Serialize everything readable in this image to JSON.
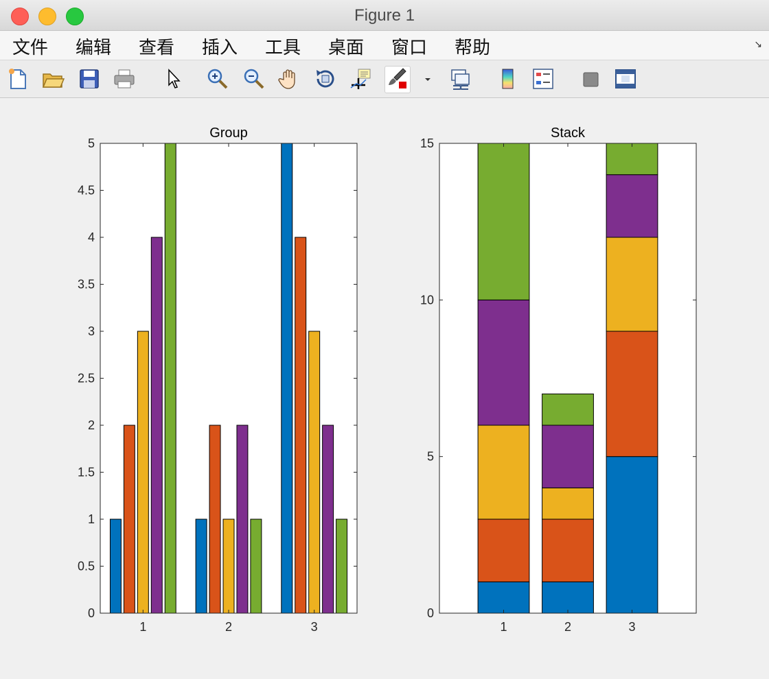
{
  "window": {
    "title": "Figure 1"
  },
  "menu": [
    "文件",
    "编辑",
    "查看",
    "插入",
    "工具",
    "桌面",
    "窗口",
    "帮助"
  ],
  "toolbar": [
    {
      "name": "new-figure-icon"
    },
    {
      "name": "open-file-icon"
    },
    {
      "name": "save-icon"
    },
    {
      "name": "print-icon"
    },
    {
      "name": "edit-plot-arrow-icon"
    },
    {
      "name": "zoom-in-icon"
    },
    {
      "name": "zoom-out-icon"
    },
    {
      "name": "pan-hand-icon"
    },
    {
      "name": "rotate-3d-icon"
    },
    {
      "name": "data-cursor-icon"
    },
    {
      "name": "brush-icon"
    },
    {
      "name": "brush-dropdown-icon"
    },
    {
      "name": "link-plot-icon"
    },
    {
      "name": "colorbar-icon"
    },
    {
      "name": "legend-icon"
    },
    {
      "name": "hide-plot-tools-icon"
    },
    {
      "name": "show-plot-tools-icon"
    }
  ],
  "chart_data": [
    {
      "type": "bar",
      "layout": "grouped",
      "title": "Group",
      "categories": [
        "1",
        "2",
        "3"
      ],
      "ylim": [
        0,
        5
      ],
      "yticks": [
        "0",
        "0.5",
        "1",
        "1.5",
        "2",
        "2.5",
        "3",
        "3.5",
        "4",
        "4.5",
        "5"
      ],
      "colors": [
        "#0072bd",
        "#d95319",
        "#edb120",
        "#7e2f8e",
        "#77ac30"
      ],
      "series": [
        {
          "values": [
            1,
            1,
            5
          ]
        },
        {
          "values": [
            2,
            2,
            4
          ]
        },
        {
          "values": [
            3,
            1,
            3
          ]
        },
        {
          "values": [
            4,
            2,
            2
          ]
        },
        {
          "values": [
            5,
            1,
            1
          ]
        }
      ]
    },
    {
      "type": "bar",
      "layout": "stacked",
      "title": "Stack",
      "categories": [
        "1",
        "2",
        "3"
      ],
      "ylim": [
        0,
        15
      ],
      "yticks": [
        "0",
        "5",
        "10",
        "15"
      ],
      "colors": [
        "#0072bd",
        "#d95319",
        "#edb120",
        "#7e2f8e",
        "#77ac30"
      ],
      "series": [
        {
          "values": [
            1,
            1,
            5
          ]
        },
        {
          "values": [
            2,
            2,
            4
          ]
        },
        {
          "values": [
            3,
            1,
            3
          ]
        },
        {
          "values": [
            4,
            2,
            2
          ]
        },
        {
          "values": [
            5,
            1,
            1
          ]
        }
      ]
    }
  ]
}
